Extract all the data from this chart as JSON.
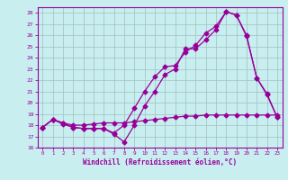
{
  "xlabel": "Windchill (Refroidissement éolien,°C)",
  "background_color": "#c8eef0",
  "line_color": "#990099",
  "grid_color": "#9fbfbf",
  "xlim": [
    -0.5,
    23.5
  ],
  "ylim": [
    16,
    28.5
  ],
  "yticks": [
    16,
    17,
    18,
    19,
    20,
    21,
    22,
    23,
    24,
    25,
    26,
    27,
    28
  ],
  "xticks": [
    0,
    1,
    2,
    3,
    4,
    5,
    6,
    7,
    8,
    9,
    10,
    11,
    12,
    13,
    14,
    15,
    16,
    17,
    18,
    19,
    20,
    21,
    22,
    23
  ],
  "line1_x": [
    0,
    1,
    2,
    3,
    4,
    5,
    6,
    7,
    8,
    9,
    10,
    11,
    12,
    13,
    14,
    15,
    16,
    17,
    18,
    19,
    20,
    21,
    22,
    23
  ],
  "line1_y": [
    17.8,
    18.5,
    18.1,
    17.8,
    17.7,
    17.7,
    17.7,
    17.2,
    16.5,
    18.0,
    19.7,
    21.0,
    22.5,
    23.0,
    24.8,
    24.8,
    25.6,
    26.5,
    28.1,
    27.8,
    26.0,
    22.2,
    20.7,
    18.7
  ],
  "line2_x": [
    0,
    1,
    2,
    3,
    4,
    5,
    6,
    7,
    8,
    9,
    10,
    11,
    12,
    13,
    14,
    15,
    16,
    17,
    18,
    19,
    20,
    21,
    22,
    23
  ],
  "line2_y": [
    17.8,
    18.5,
    18.2,
    17.8,
    17.7,
    17.7,
    17.7,
    17.3,
    18.0,
    19.5,
    21.0,
    22.3,
    23.2,
    23.3,
    24.5,
    25.1,
    26.2,
    26.8,
    28.1,
    27.8,
    25.9,
    22.2,
    20.8,
    18.7
  ],
  "line3_x": [
    0,
    1,
    2,
    3,
    4,
    5,
    6,
    7,
    8,
    9,
    10,
    11,
    12,
    13,
    14,
    15,
    16,
    17,
    18,
    19,
    20,
    21,
    22,
    23
  ],
  "line3_y": [
    17.8,
    18.5,
    18.2,
    18.0,
    18.0,
    18.1,
    18.2,
    18.2,
    18.2,
    18.3,
    18.4,
    18.5,
    18.6,
    18.7,
    18.8,
    18.8,
    18.9,
    18.9,
    18.9,
    18.9,
    18.9,
    18.9,
    18.9,
    18.9
  ]
}
